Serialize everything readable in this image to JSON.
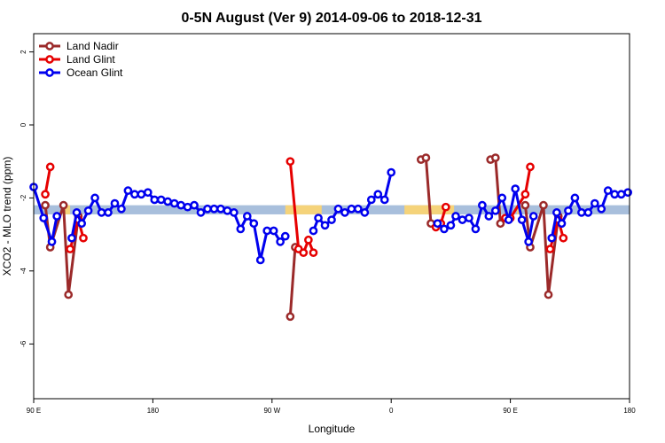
{
  "chart_data": {
    "type": "line",
    "title": "0-5N August (Ver 9)   2014-09-06 to 2018-12-31",
    "xlabel": "Longitude",
    "ylabel": "XCO2 - MLO trend (ppm)",
    "xlim": [
      90,
      450
    ],
    "ylim": [
      -7.5,
      2.5
    ],
    "x_ticks": [
      {
        "value": 90,
        "label": "90 E"
      },
      {
        "value": 162,
        "label": "180"
      },
      {
        "value": 234,
        "label": "90 W"
      },
      {
        "value": 306,
        "label": "0"
      },
      {
        "value": 378,
        "label": "90 E"
      },
      {
        "value": 450,
        "label": "180"
      }
    ],
    "y_ticks": [
      {
        "value": 2,
        "label": "2"
      },
      {
        "value": 0,
        "label": "0"
      },
      {
        "value": -2,
        "label": "-2"
      },
      {
        "value": -4,
        "label": "-4"
      },
      {
        "value": -6,
        "label": "-6"
      }
    ],
    "legend_position": "top-left",
    "reference_band": {
      "y_range": [
        -2.45,
        -2.2
      ],
      "color": "#a8bfdc",
      "highlight_color": "#f5d37a",
      "highlights": [
        [
          109,
          112
        ],
        [
          242,
          264
        ],
        [
          314,
          344
        ],
        [
          382,
          385
        ]
      ]
    },
    "series": [
      {
        "name": "Land Nadir",
        "color": "#9b2a2a",
        "segments": [
          [
            [
              97,
              -2.2
            ],
            [
              100,
              -3.35
            ],
            [
              108,
              -2.2
            ],
            [
              111,
              -4.65
            ],
            [
              117,
              -2.5
            ]
          ],
          [
            [
              245,
              -5.25
            ],
            [
              248,
              -3.35
            ]
          ],
          [
            [
              324,
              -0.95
            ],
            [
              327,
              -0.9
            ],
            [
              330,
              -2.7
            ]
          ],
          [
            [
              366,
              -0.95
            ],
            [
              369,
              -0.9
            ],
            [
              372,
              -2.7
            ]
          ],
          [
            [
              387,
              -2.2
            ],
            [
              390,
              -3.35
            ],
            [
              398,
              -2.2
            ],
            [
              401,
              -4.65
            ],
            [
              407,
              -2.5
            ]
          ]
        ]
      },
      {
        "name": "Land Glint",
        "color": "#e60000",
        "segments": [
          [
            [
              97,
              -1.9
            ],
            [
              100,
              -1.15
            ]
          ],
          [
            [
              112,
              -3.4
            ],
            [
              117,
              -2.6
            ],
            [
              120,
              -3.1
            ]
          ],
          [
            [
              245,
              -1.0
            ],
            [
              250,
              -3.4
            ],
            [
              253,
              -3.5
            ],
            [
              256,
              -3.15
            ],
            [
              259,
              -3.5
            ]
          ],
          [
            [
              333,
              -2.8
            ],
            [
              336,
              -2.7
            ],
            [
              339,
              -2.25
            ]
          ],
          [
            [
              375,
              -2.55
            ],
            [
              378,
              -2.55
            ],
            [
              387,
              -1.9
            ],
            [
              390,
              -1.15
            ]
          ],
          [
            [
              402,
              -3.4
            ],
            [
              407,
              -2.6
            ],
            [
              410,
              -3.1
            ]
          ]
        ]
      },
      {
        "name": "Ocean Glint",
        "color": "#0000ee",
        "segments": [
          [
            [
              90,
              -1.7
            ],
            [
              96,
              -2.55
            ],
            [
              101,
              -3.2
            ],
            [
              104,
              -2.5
            ]
          ],
          [
            [
              113,
              -3.1
            ],
            [
              116,
              -2.4
            ],
            [
              119,
              -2.7
            ],
            [
              123,
              -2.35
            ],
            [
              127,
              -2.0
            ],
            [
              131,
              -2.4
            ],
            [
              135,
              -2.4
            ],
            [
              139,
              -2.15
            ],
            [
              143,
              -2.3
            ],
            [
              147,
              -1.8
            ],
            [
              151,
              -1.9
            ],
            [
              155,
              -1.9
            ],
            [
              159,
              -1.85
            ],
            [
              163,
              -2.05
            ],
            [
              167,
              -2.05
            ],
            [
              171,
              -2.1
            ],
            [
              175,
              -2.15
            ],
            [
              179,
              -2.2
            ],
            [
              183,
              -2.25
            ],
            [
              187,
              -2.2
            ],
            [
              191,
              -2.4
            ],
            [
              195,
              -2.3
            ],
            [
              199,
              -2.3
            ],
            [
              203,
              -2.3
            ],
            [
              207,
              -2.35
            ],
            [
              211,
              -2.4
            ],
            [
              215,
              -2.85
            ],
            [
              219,
              -2.5
            ],
            [
              223,
              -2.7
            ],
            [
              227,
              -3.7
            ],
            [
              231,
              -2.9
            ],
            [
              235,
              -2.9
            ],
            [
              239,
              -3.2
            ],
            [
              242,
              -3.05
            ]
          ],
          [
            [
              259,
              -2.9
            ],
            [
              262,
              -2.55
            ],
            [
              266,
              -2.75
            ],
            [
              270,
              -2.6
            ],
            [
              274,
              -2.3
            ],
            [
              278,
              -2.4
            ],
            [
              282,
              -2.3
            ],
            [
              286,
              -2.3
            ],
            [
              290,
              -2.4
            ],
            [
              294,
              -2.05
            ],
            [
              298,
              -1.9
            ],
            [
              302,
              -2.05
            ],
            [
              306,
              -1.3
            ]
          ],
          [
            [
              334,
              -2.7
            ],
            [
              338,
              -2.85
            ],
            [
              342,
              -2.75
            ],
            [
              345,
              -2.5
            ],
            [
              349,
              -2.6
            ],
            [
              353,
              -2.55
            ],
            [
              357,
              -2.85
            ],
            [
              361,
              -2.2
            ],
            [
              365,
              -2.5
            ],
            [
              369,
              -2.35
            ],
            [
              373,
              -2.0
            ],
            [
              377,
              -2.6
            ],
            [
              381,
              -1.75
            ],
            [
              385,
              -2.6
            ],
            [
              389,
              -3.2
            ],
            [
              392,
              -2.5
            ]
          ],
          [
            [
              403,
              -3.1
            ],
            [
              406,
              -2.4
            ],
            [
              409,
              -2.7
            ],
            [
              413,
              -2.35
            ],
            [
              417,
              -2.0
            ],
            [
              421,
              -2.4
            ],
            [
              425,
              -2.4
            ],
            [
              429,
              -2.15
            ],
            [
              433,
              -2.3
            ],
            [
              437,
              -1.8
            ],
            [
              441,
              -1.9
            ],
            [
              445,
              -1.9
            ],
            [
              449,
              -1.85
            ]
          ]
        ]
      }
    ]
  }
}
